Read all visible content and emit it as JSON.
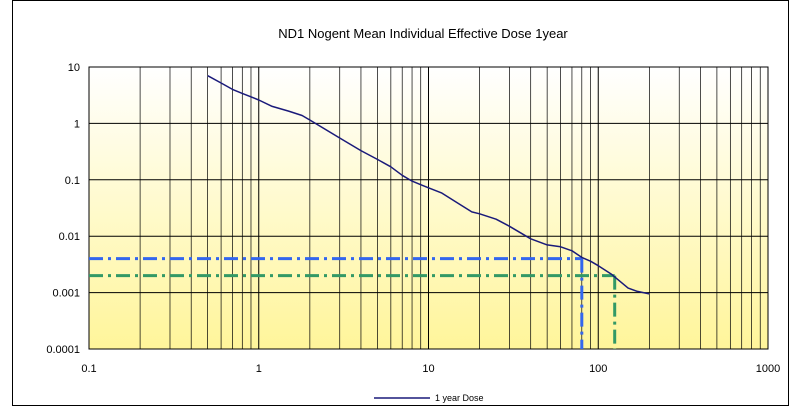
{
  "chart_data": {
    "type": "line",
    "title": "ND1  Nogent   Mean Individual Effective Dose     1year",
    "xlabel": "",
    "ylabel": "",
    "x_scale": "log",
    "y_scale": "log",
    "xlim": [
      0.1,
      1000
    ],
    "ylim": [
      0.0001,
      10
    ],
    "x_ticks": [
      "0.1",
      "1",
      "10",
      "100",
      "1000"
    ],
    "y_ticks": [
      "0.0001",
      "0.001",
      "0.01",
      "0.1",
      "1",
      "10"
    ],
    "grid": true,
    "legend_position": "bottom-center",
    "series": [
      {
        "name": "1 year Dose",
        "color": "#1a1a7a",
        "x": [
          0.5,
          0.6,
          0.7,
          0.8,
          1,
          1.2,
          1.5,
          1.8,
          2,
          3,
          4,
          5,
          6,
          7,
          8,
          9,
          10,
          12,
          15,
          18,
          20,
          25,
          30,
          40,
          50,
          60,
          70,
          80,
          90,
          100,
          120,
          150,
          170,
          200
        ],
        "values": [
          7,
          5.2,
          4.0,
          3.4,
          2.6,
          2.0,
          1.65,
          1.38,
          1.15,
          0.55,
          0.33,
          0.23,
          0.17,
          0.12,
          0.095,
          0.082,
          0.072,
          0.058,
          0.038,
          0.027,
          0.025,
          0.02,
          0.015,
          0.009,
          0.007,
          0.0065,
          0.0055,
          0.0042,
          0.0036,
          0.003,
          0.0021,
          0.0012,
          0.00105,
          0.00095
        ]
      }
    ],
    "reference_lines": [
      {
        "color": "#3366ee",
        "y": 0.004,
        "x": 80
      },
      {
        "color": "#339966",
        "y": 0.002,
        "x": 125
      }
    ]
  }
}
